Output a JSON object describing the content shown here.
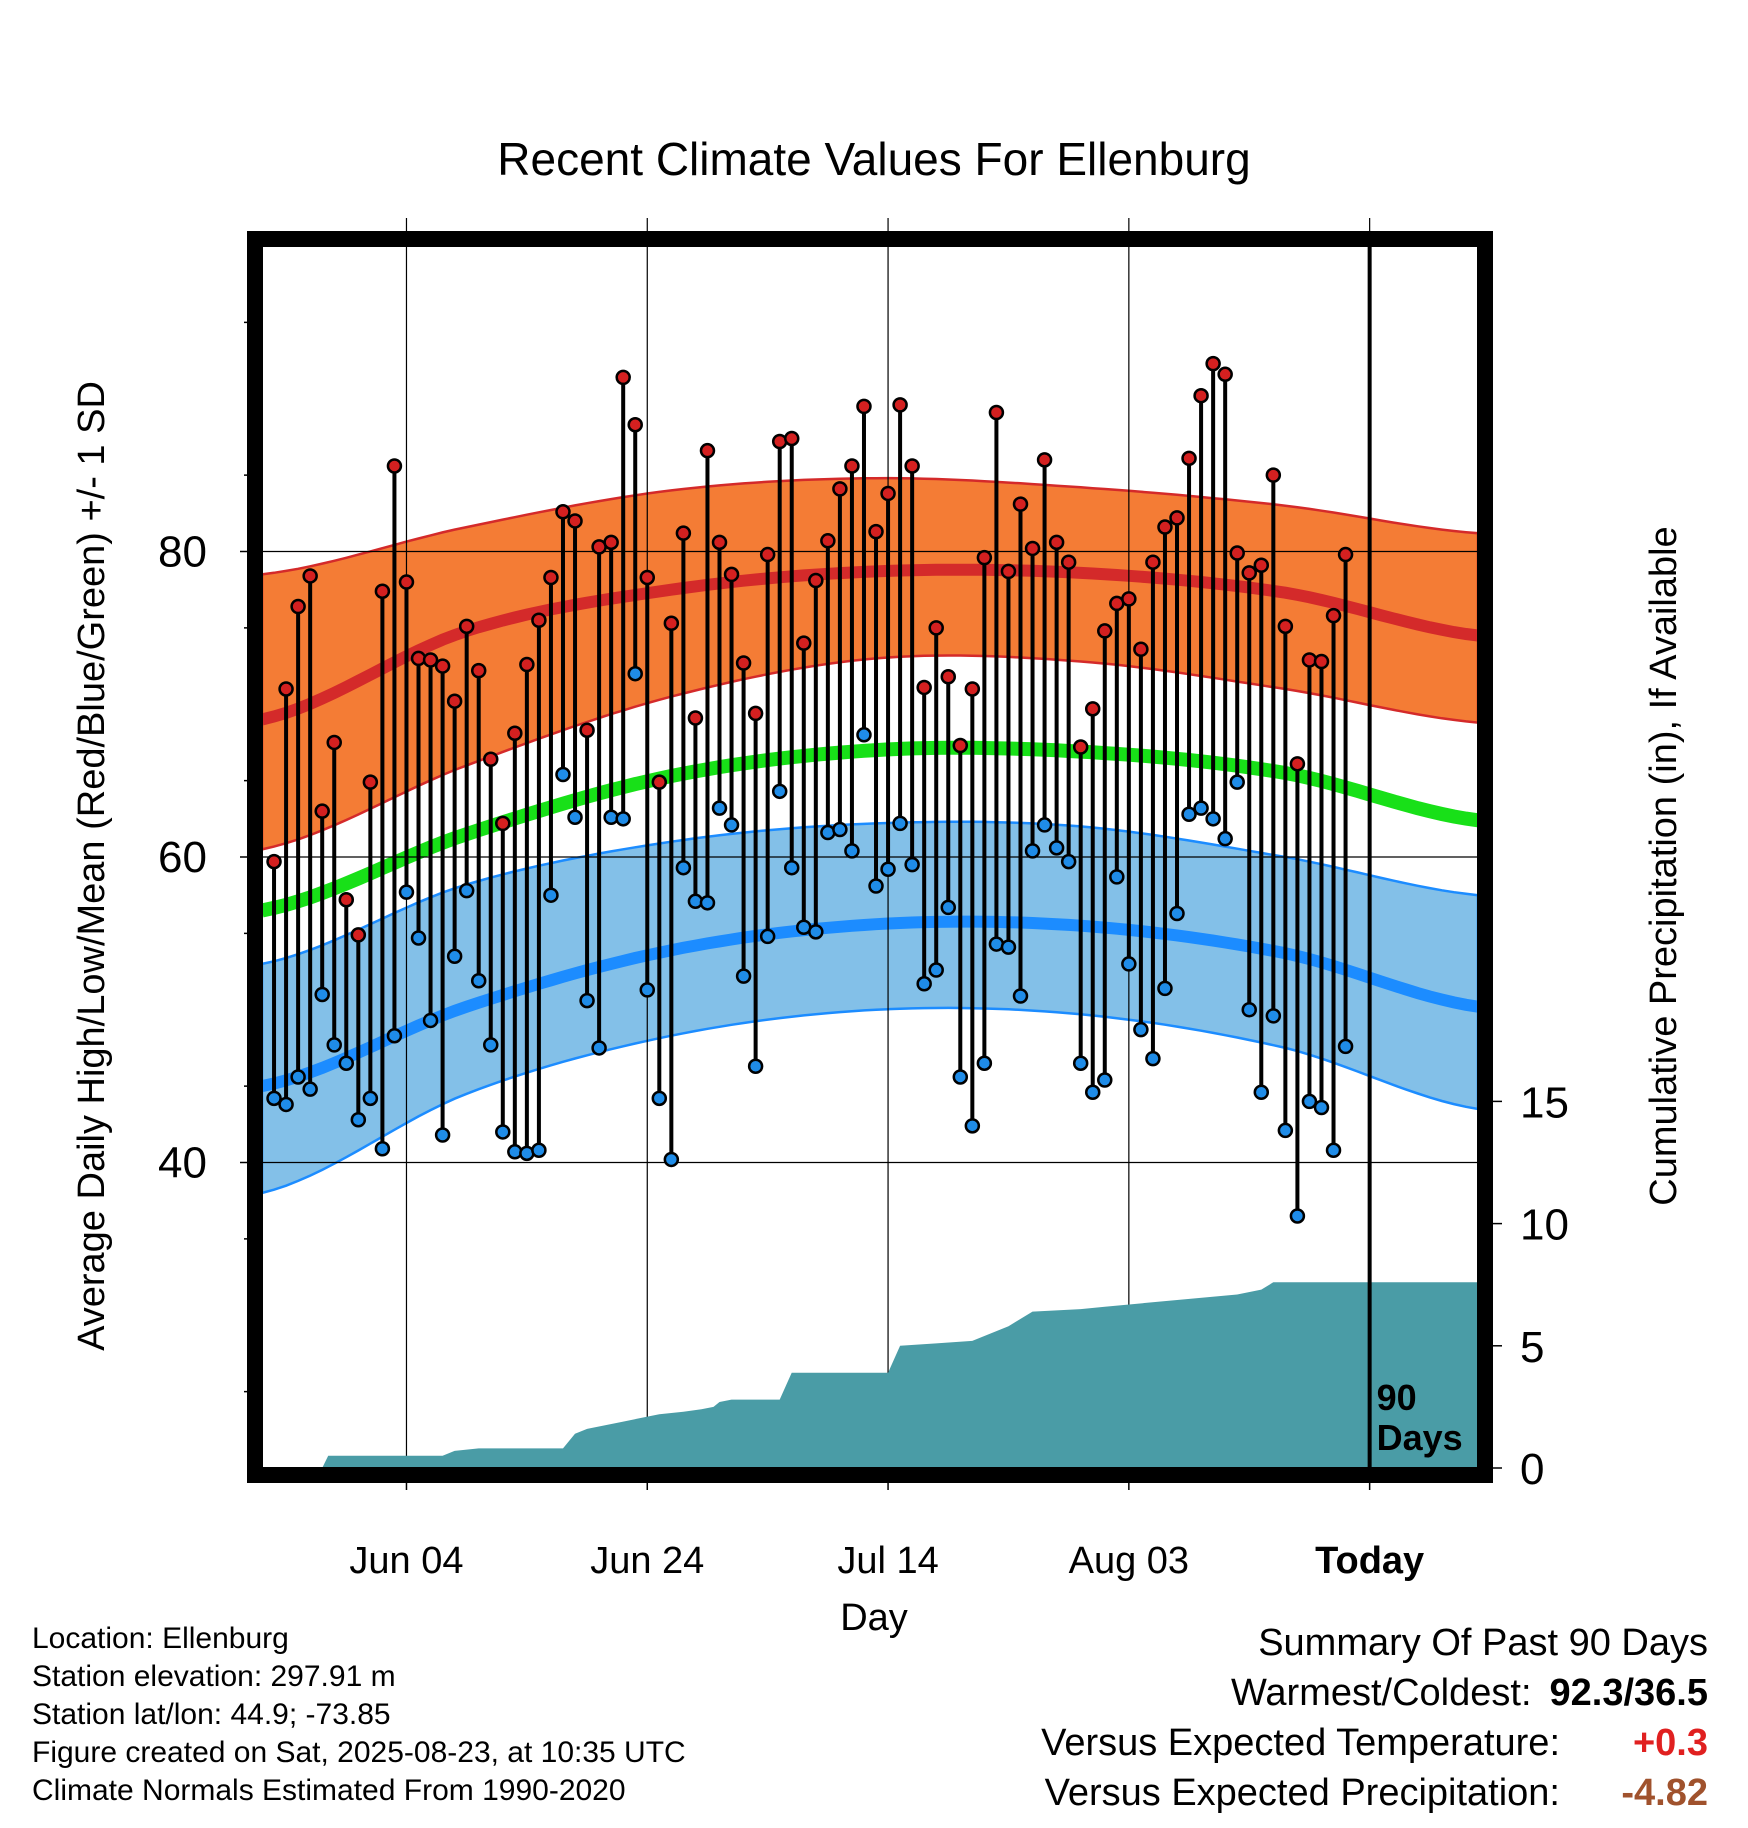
{
  "chart_data": {
    "type": "line",
    "title": "Recent Climate Values For Ellenburg",
    "xlabel": "Day",
    "ylabel": "Average Daily High/Low/Mean (Red/Blue/Green) +/- 1 SD",
    "y2label": "Cumulative Precipitation (in), If Available",
    "x_tick_labels": [
      "Jun 04",
      "Jun 24",
      "Jul 14",
      "Aug 03",
      "Today"
    ],
    "x_tick_days": [
      12,
      32,
      52,
      72,
      92
    ],
    "xlim": [
      0,
      101
    ],
    "ylim": [
      20,
      100
    ],
    "y_ticks": [
      40,
      60,
      80
    ],
    "y2lim": [
      0,
      50
    ],
    "y2_ticks": [
      0,
      5,
      10,
      15
    ],
    "today_label": "90\nDays",
    "normals": {
      "high_mean": [
        69.0,
        74.8,
        77.5,
        78.7,
        78.6,
        77.3,
        74.5
      ],
      "high_sd_upper": [
        78.5,
        81.6,
        84.0,
        84.8,
        84.2,
        83.0,
        81.2
      ],
      "high_sd_lower": [
        60.5,
        66.0,
        70.5,
        73.0,
        72.8,
        71.0,
        68.8
      ],
      "mean_mean": [
        56.5,
        61.5,
        65.3,
        67.0,
        66.9,
        65.5,
        62.4
      ],
      "low_mean": [
        45.0,
        50.2,
        53.9,
        55.6,
        55.5,
        53.7,
        50.2
      ],
      "low_sd_upper": [
        53.0,
        58.2,
        61.0,
        62.2,
        62.0,
        60.0,
        57.5
      ],
      "low_sd_lower": [
        38.0,
        44.5,
        48.3,
        50.0,
        49.7,
        47.5,
        43.5
      ],
      "days": [
        0,
        17,
        34,
        51,
        68,
        85,
        101
      ]
    },
    "daily_highs": [
      59.7,
      71.0,
      76.4,
      78.4,
      63.0,
      67.5,
      57.2,
      54.9,
      64.9,
      77.4,
      85.6,
      78.0,
      73.0,
      72.9,
      72.5,
      70.2,
      75.1,
      72.2,
      66.4,
      62.2,
      68.1,
      72.6,
      75.5,
      78.3,
      82.6,
      82.0,
      68.3,
      80.3,
      80.6,
      91.4,
      88.3,
      78.3,
      64.9,
      75.3,
      81.2,
      69.1,
      86.6,
      80.6,
      78.5,
      72.7,
      69.4,
      79.8,
      87.2,
      87.4,
      74.0,
      78.1,
      80.7,
      84.1,
      85.6,
      89.5,
      81.3,
      83.8,
      89.6,
      85.6,
      71.1,
      75.0,
      71.8,
      67.3,
      71.0,
      79.6,
      89.1,
      78.7,
      83.1,
      80.2,
      86.0,
      80.6,
      79.3,
      67.2,
      69.7,
      74.8,
      76.6,
      76.9,
      73.6,
      79.3,
      81.6,
      82.2,
      86.1,
      90.2,
      92.3,
      91.6,
      79.9,
      78.6,
      79.1,
      85.0,
      75.1,
      66.1,
      72.9,
      72.8,
      75.8,
      79.8
    ],
    "daily_lows": [
      44.2,
      43.8,
      45.6,
      44.8,
      51.0,
      47.7,
      46.5,
      42.8,
      44.2,
      40.9,
      48.3,
      57.7,
      54.7,
      49.3,
      41.8,
      53.5,
      57.8,
      51.9,
      47.7,
      42.0,
      40.7,
      40.6,
      40.8,
      57.5,
      65.4,
      62.6,
      50.6,
      47.5,
      62.6,
      62.5,
      72.0,
      51.3,
      44.2,
      40.2,
      59.3,
      57.1,
      57.0,
      63.2,
      62.1,
      52.2,
      46.3,
      54.8,
      64.3,
      59.3,
      55.4,
      55.1,
      61.6,
      61.8,
      60.4,
      68.0,
      58.1,
      59.2,
      62.2,
      59.5,
      51.7,
      52.6,
      56.7,
      45.6,
      42.4,
      46.5,
      54.3,
      54.1,
      50.9,
      60.4,
      62.1,
      60.6,
      59.7,
      46.5,
      44.6,
      45.4,
      58.7,
      53.0,
      48.7,
      46.8,
      51.4,
      56.3,
      62.8,
      63.2,
      62.5,
      61.2,
      64.9,
      50.0,
      44.6,
      49.6,
      42.1,
      36.5,
      44.0,
      43.6,
      40.8,
      47.6
    ],
    "cumulative_precip": {
      "days": [
        0,
        5,
        5.5,
        15,
        16,
        18,
        25,
        26,
        27,
        30,
        33,
        35,
        36.5,
        37.5,
        38,
        39,
        43,
        44,
        52,
        53,
        56,
        59,
        62,
        64,
        68,
        70,
        81,
        83,
        84,
        101
      ],
      "values": [
        0,
        0,
        0.5,
        0.5,
        0.7,
        0.8,
        0.8,
        1.4,
        1.6,
        1.9,
        2.2,
        2.3,
        2.4,
        2.5,
        2.7,
        2.8,
        2.8,
        3.9,
        3.9,
        5.0,
        5.1,
        5.2,
        5.8,
        6.4,
        6.5,
        6.6,
        7.1,
        7.3,
        7.6,
        7.6
      ]
    },
    "colors": {
      "high_band": "#f47c35",
      "high_line": "#d42a2a",
      "mean_line": "#18e018",
      "low_band": "#83c0e8",
      "low_line": "#1c8cff",
      "precip": "#4a9ca6",
      "high_dot": "#d42020",
      "low_dot": "#1f8ce8"
    },
    "legend": "none",
    "grid": true
  },
  "meta": {
    "location": "Location: Ellenburg",
    "elevation": "Station elevation: 297.91 m",
    "latlon": "Station lat/lon: 44.9; -73.85",
    "created": "Figure created on Sat, 2025-08-23, at 10:35 UTC",
    "normals": "Climate Normals Estimated From 1990-2020"
  },
  "summary": {
    "heading": "Summary Of Past 90 Days",
    "warm_cold_label": "Warmest/Coldest:",
    "warm_cold_value": "92.3/36.5",
    "temp_label": "Versus Expected Temperature:",
    "temp_value": "+0.3",
    "precip_label": "Versus Expected Precipitation:",
    "precip_value": "-4.82"
  }
}
